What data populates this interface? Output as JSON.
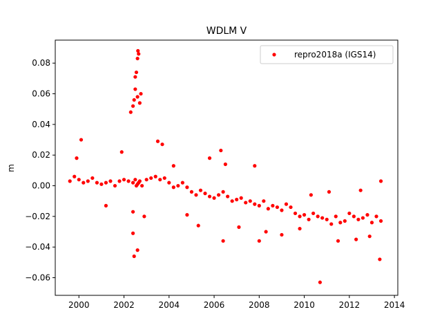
{
  "chart_data": {
    "type": "scatter",
    "title": "WDLM V",
    "xlabel": "",
    "ylabel": "m",
    "xlim": [
      1998.95,
      2014.15
    ],
    "ylim": [
      -0.0715,
      0.095
    ],
    "x_ticks": [
      2000,
      2002,
      2004,
      2006,
      2008,
      2010,
      2012,
      2014
    ],
    "x_tick_labels": [
      "2000",
      "2002",
      "2004",
      "2006",
      "2008",
      "2010",
      "2012",
      "2014"
    ],
    "y_ticks": [
      -0.06,
      -0.04,
      -0.02,
      0.0,
      0.02,
      0.04,
      0.06,
      0.08
    ],
    "y_tick_labels": [
      "−0.06",
      "−0.04",
      "−0.02",
      "0.00",
      "0.02",
      "0.04",
      "0.06",
      "0.08"
    ],
    "grid": false,
    "legend": {
      "position": "top-right",
      "entries": [
        "repro2018a (IGS14)"
      ]
    },
    "series": [
      {
        "name": "repro2018a (IGS14)",
        "color": "#ff0000",
        "marker": "circle",
        "x": [
          1999.6,
          1999.8,
          2000.0,
          2000.2,
          2000.4,
          2000.6,
          2000.8,
          2001.0,
          2001.2,
          2001.4,
          2001.6,
          2001.8,
          2002.0,
          2002.2,
          2002.4,
          2002.5,
          2002.55,
          2002.6,
          2002.65,
          2002.7,
          2002.8,
          2003.0,
          2003.2,
          2003.4,
          2003.6,
          2003.8,
          2004.0,
          2004.2,
          2004.4,
          2004.6,
          2004.8,
          2005.0,
          2005.2,
          2005.4,
          2005.6,
          2005.8,
          2006.0,
          2006.2,
          2006.4,
          2006.6,
          2006.8,
          2007.0,
          2007.2,
          2007.4,
          2007.6,
          2007.8,
          2008.0,
          2008.2,
          2008.4,
          2008.6,
          2008.8,
          2009.0,
          2009.2,
          2009.4,
          2009.6,
          2009.8,
          2010.0,
          2010.2,
          2010.4,
          2010.6,
          2010.8,
          2011.0,
          2011.2,
          2011.4,
          2011.6,
          2011.8,
          2012.0,
          2012.2,
          2012.4,
          2012.6,
          2012.8,
          2013.0,
          2013.2,
          2013.4,
          2002.5,
          2002.55,
          2002.6,
          2002.62,
          2002.65,
          2002.3,
          2002.4,
          2002.45,
          2002.5,
          2002.6,
          2002.7,
          2002.75,
          2002.4,
          2002.45,
          2002.6,
          2000.1,
          1999.9,
          2001.9,
          2003.5,
          2003.7,
          2005.8,
          2006.3,
          2006.5,
          2006.4,
          2007.8,
          2008.0,
          2010.7,
          2010.3,
          2011.1,
          2012.5,
          2013.4,
          2013.35,
          2002.4,
          2002.9,
          2001.2,
          2004.2,
          2004.8,
          2005.3,
          2007.1,
          2008.3,
          2009.0,
          2009.8,
          2011.5,
          2012.3,
          2012.9
        ],
        "y": [
          0.003,
          0.006,
          0.004,
          0.002,
          0.003,
          0.005,
          0.002,
          0.001,
          0.002,
          0.003,
          0.0,
          0.003,
          0.004,
          0.003,
          0.002,
          0.004,
          0.0,
          0.001,
          0.002,
          0.003,
          0.0,
          0.004,
          0.005,
          0.006,
          0.004,
          0.005,
          0.002,
          -0.001,
          0.0,
          0.002,
          -0.001,
          -0.004,
          -0.006,
          -0.003,
          -0.005,
          -0.007,
          -0.008,
          -0.006,
          -0.004,
          -0.007,
          -0.01,
          -0.009,
          -0.008,
          -0.011,
          -0.01,
          -0.012,
          -0.013,
          -0.01,
          -0.015,
          -0.013,
          -0.014,
          -0.016,
          -0.012,
          -0.014,
          -0.018,
          -0.02,
          -0.019,
          -0.022,
          -0.018,
          -0.02,
          -0.021,
          -0.022,
          -0.025,
          -0.02,
          -0.024,
          -0.023,
          -0.018,
          -0.02,
          -0.022,
          -0.021,
          -0.019,
          -0.024,
          -0.02,
          -0.023,
          0.071,
          0.074,
          0.083,
          0.088,
          0.086,
          0.048,
          0.052,
          0.056,
          0.063,
          0.058,
          0.054,
          0.06,
          -0.031,
          -0.046,
          -0.042,
          0.03,
          0.018,
          0.022,
          0.029,
          0.027,
          0.018,
          0.023,
          0.014,
          -0.036,
          0.013,
          -0.036,
          -0.063,
          -0.006,
          -0.004,
          -0.003,
          0.003,
          -0.048,
          -0.017,
          -0.02,
          -0.013,
          0.013,
          -0.019,
          -0.026,
          -0.027,
          -0.03,
          -0.032,
          -0.028,
          -0.036,
          -0.035,
          -0.033
        ]
      }
    ]
  }
}
